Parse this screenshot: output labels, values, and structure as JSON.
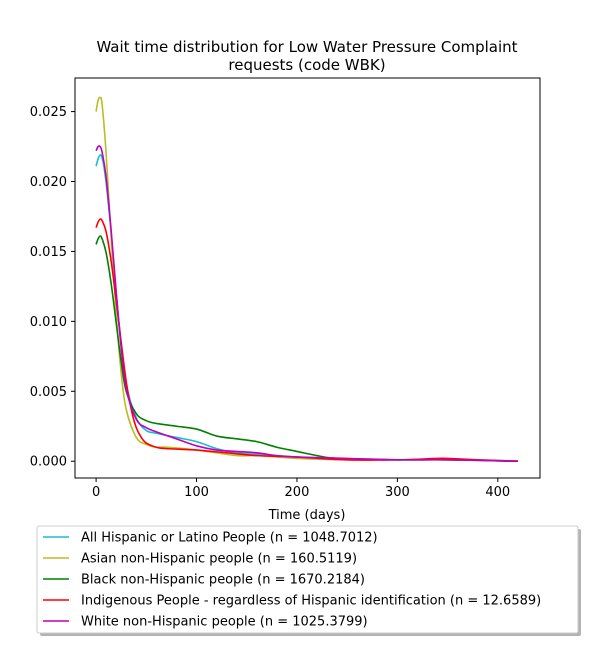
{
  "chart_data": {
    "type": "line",
    "title_lines": [
      "Wait time distribution  for Low Water Pressure Complaint",
      "requests (code WBK)"
    ],
    "xlabel": "Time (days)",
    "ylabel": "",
    "xlim": [
      -21,
      442
    ],
    "ylim": [
      -0.0012,
      0.0274
    ],
    "xticks": [
      0,
      100,
      200,
      300,
      400
    ],
    "xtick_labels": [
      "0",
      "100",
      "200",
      "300",
      "400"
    ],
    "yticks": [
      0.0,
      0.005,
      0.01,
      0.015,
      0.02,
      0.025
    ],
    "ytick_labels": [
      "0.000",
      "0.005",
      "0.010",
      "0.015",
      "0.020",
      "0.025"
    ],
    "grid": false,
    "legend_position": "below plot",
    "series": [
      {
        "name": "All Hispanic or Latino People (n = 1048.7012)",
        "color": "#17becf",
        "x": [
          0,
          3,
          6,
          10,
          15,
          20,
          25,
          30,
          40,
          50,
          60,
          80,
          100,
          120,
          140,
          160,
          180,
          200,
          220,
          250,
          300,
          350,
          400,
          420
        ],
        "y": [
          0.0211,
          0.0218,
          0.0217,
          0.0199,
          0.0163,
          0.0121,
          0.0083,
          0.0055,
          0.0031,
          0.0022,
          0.002,
          0.0017,
          0.0014,
          0.0009,
          0.0006,
          0.0005,
          0.0004,
          0.0003,
          0.0002,
          0.00015,
          0.0001,
          0.0001,
          5e-05,
          0.0
        ]
      },
      {
        "name": "Asian non-Hispanic people (n = 160.5119)",
        "color": "#bcbd22",
        "x": [
          0,
          2,
          4,
          6,
          10,
          15,
          20,
          25,
          30,
          40,
          50,
          60,
          70,
          100,
          120,
          140,
          160,
          180,
          200,
          250,
          300,
          350,
          420
        ],
        "y": [
          0.025,
          0.0258,
          0.026,
          0.0255,
          0.022,
          0.016,
          0.0105,
          0.0063,
          0.0037,
          0.0017,
          0.0012,
          0.001,
          0.001,
          0.0008,
          0.0006,
          0.0004,
          0.0004,
          0.0003,
          0.0002,
          0.0001,
          0.0001,
          0.0001,
          0.0
        ]
      },
      {
        "name": "Black non-Hispanic people (n = 1670.2184)",
        "color": "#008000",
        "x": [
          0,
          2,
          4,
          6,
          10,
          15,
          20,
          25,
          30,
          40,
          50,
          60,
          80,
          100,
          120,
          140,
          160,
          180,
          200,
          220,
          240,
          300,
          350,
          420
        ],
        "y": [
          0.0155,
          0.0159,
          0.0161,
          0.0159,
          0.0149,
          0.0127,
          0.0099,
          0.0071,
          0.005,
          0.0034,
          0.0029,
          0.0027,
          0.0025,
          0.0023,
          0.0018,
          0.0016,
          0.0014,
          0.001,
          0.0007,
          0.0004,
          0.0002,
          0.0001,
          0.0001,
          0.0
        ]
      },
      {
        "name": "Indigenous People - regardless of Hispanic identification (n = 12.6589)",
        "color": "#ff0000",
        "x": [
          0,
          2,
          4,
          6,
          10,
          15,
          20,
          25,
          30,
          35,
          40,
          45,
          50,
          60,
          70,
          100,
          130,
          160,
          200,
          250,
          300,
          340,
          350,
          380,
          420
        ],
        "y": [
          0.0167,
          0.0171,
          0.0173,
          0.0172,
          0.0164,
          0.0143,
          0.0115,
          0.0085,
          0.0057,
          0.0037,
          0.0024,
          0.0017,
          0.0013,
          0.001,
          0.0009,
          0.0008,
          0.0006,
          0.0004,
          0.0003,
          0.0001,
          0.0001,
          0.0002,
          0.0002,
          0.0001,
          0.0
        ]
      },
      {
        "name": "White non-Hispanic people (n = 1025.3799)",
        "color": "#bf00bf",
        "x": [
          0,
          2,
          4,
          6,
          10,
          15,
          20,
          25,
          30,
          40,
          50,
          60,
          80,
          100,
          120,
          140,
          160,
          180,
          200,
          250,
          300,
          350,
          420
        ],
        "y": [
          0.0222,
          0.0225,
          0.0225,
          0.0221,
          0.0203,
          0.0165,
          0.0121,
          0.0081,
          0.0052,
          0.003,
          0.0024,
          0.0021,
          0.0016,
          0.0011,
          0.0008,
          0.0007,
          0.0006,
          0.0004,
          0.0003,
          0.0002,
          0.0001,
          0.0001,
          0.0
        ]
      }
    ]
  }
}
